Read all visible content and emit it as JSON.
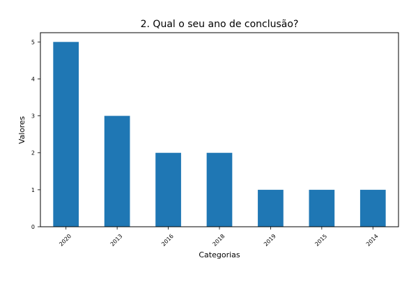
{
  "chart_data": {
    "type": "bar",
    "title": "2. Qual o seu ano de conclusão?",
    "xlabel": "Categorias",
    "ylabel": "Valores",
    "categories": [
      "2020",
      "2013",
      "2016",
      "2018",
      "2019",
      "2015",
      "2014"
    ],
    "values": [
      5,
      3,
      2,
      2,
      1,
      1,
      1
    ],
    "yticks": [
      0,
      1,
      2,
      3,
      4,
      5
    ],
    "ylim": [
      0,
      5.25
    ],
    "grid": false,
    "legend": "none",
    "colors": {
      "bar": "#1f77b4",
      "axis": "#000000",
      "background": "#ffffff"
    }
  }
}
